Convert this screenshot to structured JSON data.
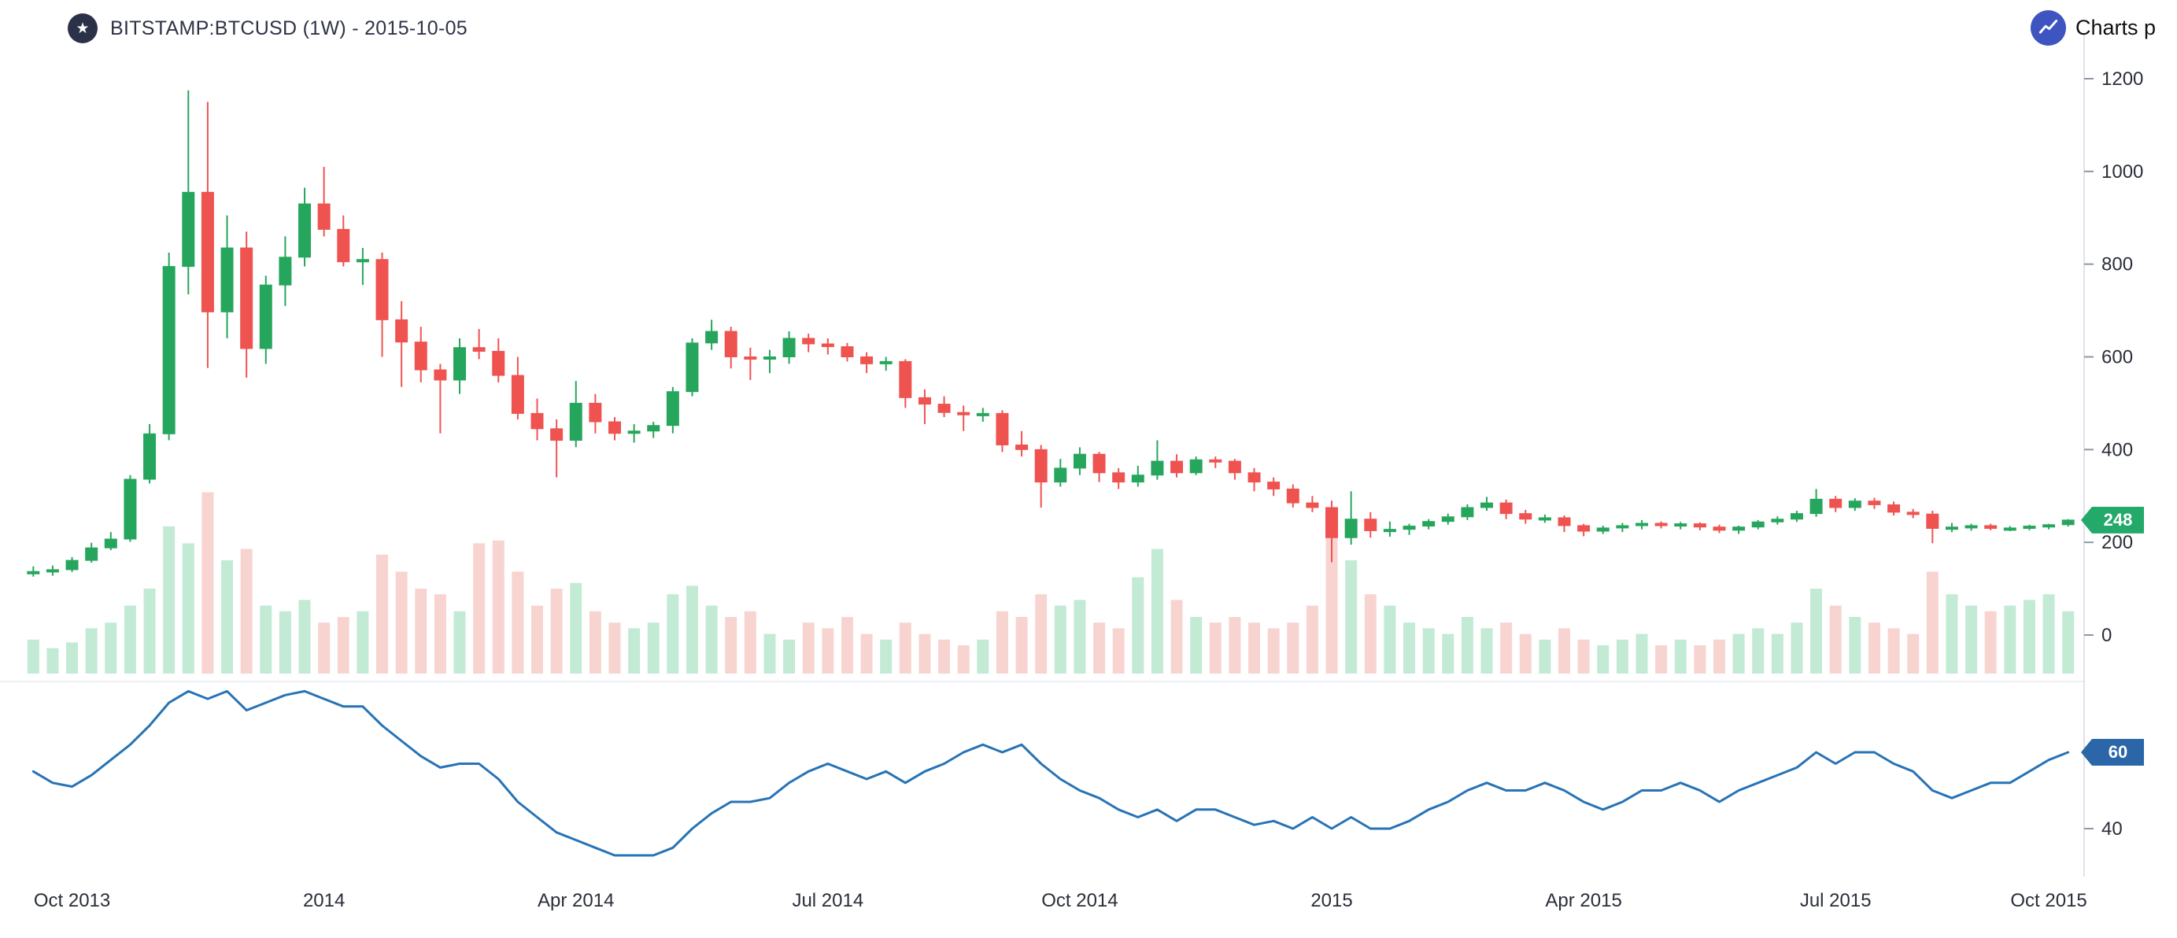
{
  "header": {
    "title": "BITSTAMP:BTCUSD (1W) - 2015-10-05"
  },
  "icons": {
    "star": "★"
  },
  "attribution": {
    "label": "Charts p"
  },
  "badges": {
    "price": "248",
    "rsi": "60"
  },
  "chart_data": {
    "type": "candlestick",
    "title": "BITSTAMP:BTCUSD (1W) - 2015-10-05",
    "symbol": "BITSTAMP:BTCUSD",
    "interval": "1W",
    "as_of_date": "2015-10-05",
    "legend_position": "none",
    "grid": false,
    "price_axis": {
      "ticks": [
        0,
        200,
        400,
        600,
        800,
        1000,
        1200
      ],
      "range": [
        0,
        1200
      ],
      "last_price": 248
    },
    "time_labels": [
      {
        "label": "Oct 2013",
        "week": 2
      },
      {
        "label": "2014",
        "week": 15
      },
      {
        "label": "Apr 2014",
        "week": 28
      },
      {
        "label": "Jul 2014",
        "week": 41
      },
      {
        "label": "Oct 2014",
        "week": 54
      },
      {
        "label": "2015",
        "week": 67
      },
      {
        "label": "Apr 2015",
        "week": 80
      },
      {
        "label": "Jul 2015",
        "week": 93
      },
      {
        "label": "Oct 2015",
        "week": 104
      }
    ],
    "candles_ohlcv": [
      [
        133,
        148,
        126,
        137,
        60
      ],
      [
        137,
        150,
        128,
        141,
        45
      ],
      [
        141,
        168,
        136,
        161,
        55
      ],
      [
        161,
        199,
        156,
        188,
        80
      ],
      [
        188,
        222,
        183,
        207,
        90
      ],
      [
        207,
        345,
        201,
        336,
        120
      ],
      [
        336,
        455,
        327,
        434,
        150
      ],
      [
        434,
        825,
        420,
        795,
        260
      ],
      [
        795,
        1175,
        735,
        955,
        230
      ],
      [
        955,
        1150,
        576,
        697,
        320
      ],
      [
        697,
        905,
        640,
        835,
        200
      ],
      [
        835,
        870,
        555,
        618,
        220
      ],
      [
        618,
        775,
        585,
        755,
        120
      ],
      [
        755,
        860,
        710,
        815,
        110
      ],
      [
        815,
        965,
        795,
        930,
        130
      ],
      [
        930,
        1010,
        860,
        875,
        90
      ],
      [
        875,
        905,
        795,
        805,
        100
      ],
      [
        805,
        835,
        755,
        810,
        110
      ],
      [
        810,
        825,
        600,
        680,
        210
      ],
      [
        680,
        720,
        535,
        632,
        180
      ],
      [
        632,
        665,
        545,
        572,
        150
      ],
      [
        572,
        585,
        435,
        550,
        140
      ],
      [
        550,
        640,
        520,
        620,
        110
      ],
      [
        620,
        660,
        595,
        612,
        230
      ],
      [
        612,
        640,
        545,
        560,
        235
      ],
      [
        560,
        600,
        465,
        478,
        180
      ],
      [
        478,
        510,
        420,
        445,
        120
      ],
      [
        445,
        465,
        340,
        420,
        150
      ],
      [
        420,
        548,
        405,
        500,
        160
      ],
      [
        500,
        520,
        435,
        460,
        110
      ],
      [
        460,
        470,
        420,
        435,
        90
      ],
      [
        435,
        455,
        415,
        440,
        80
      ],
      [
        440,
        460,
        425,
        452,
        90
      ],
      [
        452,
        535,
        435,
        525,
        140
      ],
      [
        525,
        640,
        515,
        630,
        155
      ],
      [
        630,
        680,
        615,
        655,
        120
      ],
      [
        655,
        665,
        575,
        600,
        100
      ],
      [
        600,
        620,
        550,
        595,
        110
      ],
      [
        595,
        615,
        565,
        600,
        70
      ],
      [
        600,
        655,
        585,
        640,
        60
      ],
      [
        640,
        650,
        610,
        628,
        90
      ],
      [
        628,
        640,
        605,
        622,
        80
      ],
      [
        622,
        630,
        590,
        600,
        100
      ],
      [
        600,
        610,
        565,
        585,
        70
      ],
      [
        585,
        600,
        570,
        590,
        60
      ],
      [
        590,
        595,
        490,
        512,
        90
      ],
      [
        512,
        530,
        455,
        498,
        70
      ],
      [
        498,
        515,
        470,
        480,
        60
      ],
      [
        480,
        495,
        440,
        475,
        50
      ],
      [
        475,
        490,
        460,
        478,
        60
      ],
      [
        478,
        485,
        395,
        410,
        110
      ],
      [
        410,
        440,
        385,
        400,
        100
      ],
      [
        400,
        410,
        275,
        330,
        140
      ],
      [
        330,
        380,
        320,
        360,
        120
      ],
      [
        360,
        405,
        345,
        390,
        130
      ],
      [
        390,
        395,
        330,
        350,
        90
      ],
      [
        350,
        360,
        315,
        330,
        80
      ],
      [
        330,
        365,
        320,
        345,
        170
      ],
      [
        345,
        420,
        335,
        375,
        220
      ],
      [
        375,
        390,
        340,
        350,
        130
      ],
      [
        350,
        385,
        345,
        378,
        100
      ],
      [
        378,
        385,
        360,
        375,
        90
      ],
      [
        375,
        380,
        335,
        350,
        100
      ],
      [
        350,
        360,
        310,
        330,
        90
      ],
      [
        330,
        340,
        300,
        315,
        80
      ],
      [
        315,
        325,
        275,
        285,
        90
      ],
      [
        285,
        300,
        265,
        275,
        120
      ],
      [
        275,
        290,
        157,
        210,
        255
      ],
      [
        210,
        310,
        195,
        250,
        200
      ],
      [
        250,
        265,
        210,
        225,
        140
      ],
      [
        225,
        245,
        212,
        228,
        120
      ],
      [
        228,
        240,
        216,
        235,
        90
      ],
      [
        235,
        250,
        228,
        245,
        80
      ],
      [
        245,
        262,
        238,
        255,
        70
      ],
      [
        255,
        282,
        248,
        275,
        100
      ],
      [
        275,
        298,
        268,
        285,
        80
      ],
      [
        285,
        292,
        250,
        262,
        90
      ],
      [
        262,
        270,
        240,
        250,
        70
      ],
      [
        250,
        260,
        242,
        253,
        60
      ],
      [
        253,
        258,
        222,
        236,
        80
      ],
      [
        236,
        240,
        213,
        224,
        60
      ],
      [
        224,
        236,
        218,
        231,
        50
      ],
      [
        231,
        242,
        222,
        236,
        60
      ],
      [
        236,
        248,
        228,
        241,
        70
      ],
      [
        241,
        245,
        230,
        236,
        50
      ],
      [
        236,
        244,
        228,
        240,
        60
      ],
      [
        240,
        243,
        226,
        233,
        50
      ],
      [
        233,
        238,
        220,
        226,
        60
      ],
      [
        226,
        236,
        218,
        233,
        70
      ],
      [
        233,
        248,
        228,
        244,
        80
      ],
      [
        244,
        256,
        238,
        250,
        70
      ],
      [
        250,
        268,
        244,
        262,
        90
      ],
      [
        262,
        315,
        255,
        293,
        150
      ],
      [
        293,
        300,
        265,
        275,
        120
      ],
      [
        275,
        295,
        268,
        289,
        100
      ],
      [
        289,
        296,
        272,
        281,
        90
      ],
      [
        281,
        288,
        258,
        265,
        80
      ],
      [
        265,
        272,
        252,
        261,
        70
      ],
      [
        261,
        268,
        198,
        230,
        180
      ],
      [
        230,
        242,
        222,
        233,
        140
      ],
      [
        233,
        240,
        225,
        236,
        120
      ],
      [
        236,
        240,
        226,
        230,
        110
      ],
      [
        230,
        235,
        224,
        231,
        120
      ],
      [
        231,
        238,
        226,
        235,
        130
      ],
      [
        235,
        240,
        228,
        238,
        140
      ],
      [
        238,
        250,
        234,
        248,
        110
      ]
    ],
    "rsi": {
      "ticks": [
        40,
        60
      ],
      "last": 60,
      "values": [
        55,
        52,
        51,
        54,
        58,
        62,
        67,
        73,
        76,
        74,
        76,
        71,
        73,
        75,
        76,
        74,
        72,
        72,
        67,
        63,
        59,
        56,
        57,
        57,
        53,
        47,
        43,
        39,
        37,
        35,
        33,
        33,
        33,
        35,
        40,
        44,
        47,
        47,
        48,
        52,
        55,
        57,
        55,
        53,
        55,
        52,
        55,
        57,
        60,
        62,
        60,
        62,
        57,
        53,
        50,
        48,
        45,
        43,
        45,
        42,
        45,
        45,
        43,
        41,
        42,
        40,
        43,
        40,
        43,
        40,
        40,
        42,
        45,
        47,
        50,
        52,
        50,
        50,
        52,
        50,
        47,
        45,
        47,
        50,
        50,
        52,
        50,
        47,
        50,
        52,
        54,
        56,
        60,
        57,
        60,
        60,
        57,
        55,
        50,
        48,
        50,
        52,
        52,
        55,
        58,
        60
      ]
    },
    "colors": {
      "bull": "#26a65d",
      "bear": "#ef5350",
      "bull_volume": "#c3ead4",
      "bear_volume": "#f8d4d1",
      "rsi_line": "#2673b5",
      "rsi_badge": "#2a66a8",
      "price_badge": "#23a96a",
      "axis_text": "#2a2e39",
      "axis_line": "#dfe2ea"
    }
  }
}
